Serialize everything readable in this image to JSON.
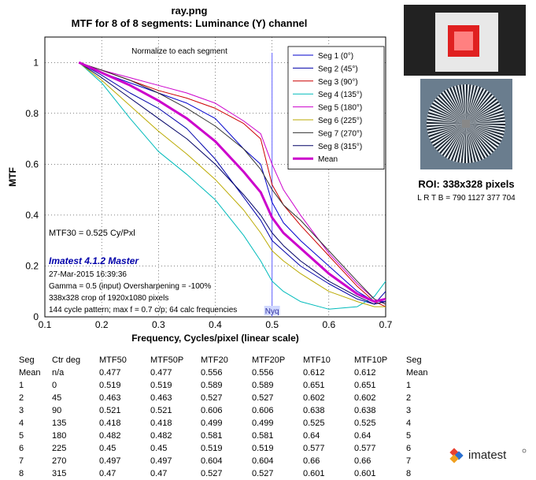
{
  "header": {
    "file": "ray.png",
    "subtitle": "MTF for 8 of 8 segments:  Luminance (Y) channel"
  },
  "chart_data": {
    "type": "line",
    "xlabel": "Frequency, Cycles/pixel (linear scale)",
    "ylabel": "MTF",
    "xlim": [
      0.1,
      0.7
    ],
    "ylim": [
      0,
      1.1
    ],
    "xticks": [
      "0.1",
      "0.2",
      "0.3",
      "0.4",
      "0.5",
      "0.6",
      "0.7"
    ],
    "yticks": [
      "0",
      "0.2",
      "0.4",
      "0.6",
      "0.8",
      "1"
    ],
    "x_tick_values": [
      0.1,
      0.2,
      0.3,
      0.4,
      0.5,
      0.6,
      0.7
    ],
    "y_tick_values": [
      0,
      0.2,
      0.4,
      0.6,
      0.8,
      1.0
    ],
    "grid": true,
    "legend_position": "top-right",
    "normalize_note": "Normalize to each segment",
    "mtf30_text": "MTF30 = 0.525 Cy/Pxl",
    "nyquist": {
      "x": 0.5,
      "label": "Nyq"
    },
    "annotations": {
      "brand": "Imatest 4.1.2 Master",
      "timestamp": "27-Mar-2015 16:39:36",
      "gamma": "Gamma = 0.5 (input)  Oversharpening = -100%",
      "crop": "338x328 crop of 1920x1080 pixels",
      "pattern": "144 cycle pattern;  max f = 0.7 c/p;  64 calc frequencies"
    },
    "series": [
      {
        "name": "Seg 1 (0°)",
        "color": "#0000cc",
        "width": 1,
        "x": [
          0.16,
          0.2,
          0.25,
          0.3,
          0.35,
          0.4,
          0.45,
          0.48,
          0.5,
          0.52,
          0.55,
          0.6,
          0.65,
          0.68,
          0.7
        ],
        "y": [
          1.0,
          0.96,
          0.92,
          0.88,
          0.84,
          0.78,
          0.66,
          0.6,
          0.45,
          0.37,
          0.3,
          0.2,
          0.1,
          0.06,
          0.06
        ]
      },
      {
        "name": "Seg 2 (45°)",
        "color": "#0000aa",
        "width": 1,
        "x": [
          0.16,
          0.2,
          0.25,
          0.3,
          0.35,
          0.4,
          0.45,
          0.48,
          0.5,
          0.52,
          0.55,
          0.6,
          0.65,
          0.68,
          0.7
        ],
        "y": [
          1.0,
          0.95,
          0.88,
          0.82,
          0.74,
          0.62,
          0.47,
          0.38,
          0.3,
          0.26,
          0.2,
          0.13,
          0.07,
          0.05,
          0.1
        ]
      },
      {
        "name": "Seg 3 (90°)",
        "color": "#cc0000",
        "width": 1,
        "x": [
          0.16,
          0.2,
          0.25,
          0.3,
          0.35,
          0.4,
          0.45,
          0.48,
          0.5,
          0.52,
          0.55,
          0.6,
          0.65,
          0.68,
          0.7
        ],
        "y": [
          1.0,
          0.97,
          0.93,
          0.89,
          0.86,
          0.82,
          0.76,
          0.7,
          0.52,
          0.44,
          0.36,
          0.24,
          0.12,
          0.06,
          0.04
        ]
      },
      {
        "name": "Seg 4 (135°)",
        "color": "#00bbbb",
        "width": 1,
        "x": [
          0.16,
          0.2,
          0.25,
          0.3,
          0.35,
          0.4,
          0.45,
          0.48,
          0.5,
          0.52,
          0.55,
          0.6,
          0.65,
          0.68,
          0.7
        ],
        "y": [
          1.0,
          0.92,
          0.78,
          0.65,
          0.56,
          0.46,
          0.32,
          0.22,
          0.14,
          0.1,
          0.06,
          0.03,
          0.04,
          0.08,
          0.14
        ]
      },
      {
        "name": "Seg 5 (180°)",
        "color": "#cc00cc",
        "width": 1,
        "x": [
          0.16,
          0.2,
          0.25,
          0.3,
          0.35,
          0.4,
          0.45,
          0.48,
          0.5,
          0.52,
          0.55,
          0.6,
          0.65,
          0.68,
          0.7
        ],
        "y": [
          1.0,
          0.97,
          0.94,
          0.91,
          0.88,
          0.84,
          0.77,
          0.72,
          0.6,
          0.5,
          0.4,
          0.25,
          0.13,
          0.07,
          0.05
        ]
      },
      {
        "name": "Seg 6 (225°)",
        "color": "#bbaa00",
        "width": 1,
        "x": [
          0.16,
          0.2,
          0.25,
          0.3,
          0.35,
          0.4,
          0.45,
          0.48,
          0.5,
          0.52,
          0.55,
          0.6,
          0.65,
          0.68,
          0.7
        ],
        "y": [
          1.0,
          0.93,
          0.83,
          0.73,
          0.64,
          0.54,
          0.42,
          0.33,
          0.26,
          0.22,
          0.17,
          0.1,
          0.06,
          0.04,
          0.04
        ]
      },
      {
        "name": "Seg 7 (270°)",
        "color": "#333333",
        "width": 1,
        "x": [
          0.16,
          0.2,
          0.25,
          0.3,
          0.35,
          0.4,
          0.45,
          0.48,
          0.5,
          0.52,
          0.55,
          0.6,
          0.65,
          0.68,
          0.7
        ],
        "y": [
          1.0,
          0.97,
          0.93,
          0.88,
          0.82,
          0.75,
          0.66,
          0.58,
          0.5,
          0.44,
          0.38,
          0.26,
          0.14,
          0.07,
          0.05
        ]
      },
      {
        "name": "Seg 8 (315°)",
        "color": "#000066",
        "width": 1,
        "x": [
          0.16,
          0.2,
          0.25,
          0.3,
          0.35,
          0.4,
          0.45,
          0.48,
          0.5,
          0.52,
          0.55,
          0.6,
          0.65,
          0.68,
          0.7
        ],
        "y": [
          1.0,
          0.94,
          0.86,
          0.78,
          0.7,
          0.6,
          0.48,
          0.4,
          0.33,
          0.28,
          0.22,
          0.14,
          0.08,
          0.05,
          0.06
        ]
      },
      {
        "name": "Mean",
        "color": "#cc00cc",
        "width": 3,
        "x": [
          0.16,
          0.2,
          0.25,
          0.3,
          0.35,
          0.4,
          0.45,
          0.48,
          0.5,
          0.52,
          0.55,
          0.6,
          0.65,
          0.68,
          0.7
        ],
        "y": [
          1.0,
          0.96,
          0.91,
          0.85,
          0.78,
          0.69,
          0.57,
          0.49,
          0.39,
          0.33,
          0.27,
          0.17,
          0.09,
          0.06,
          0.07
        ]
      }
    ]
  },
  "roi": {
    "label": "ROI:  338x328 pixels",
    "coords": "L R  T B = 790 1127  377 704"
  },
  "table": {
    "header": [
      "Seg",
      "Ctr deg",
      "MTF50",
      "MTF50P",
      "MTF20",
      "MTF20P",
      "MTF10",
      "MTF10P",
      "Seg"
    ],
    "rows": [
      [
        "Mean",
        "n/a",
        "0.477",
        "0.477",
        "0.556",
        "0.556",
        "0.612",
        "0.612",
        "Mean"
      ],
      [
        "1",
        "0",
        "0.519",
        "0.519",
        "0.589",
        "0.589",
        "0.651",
        "0.651",
        "1"
      ],
      [
        "2",
        "45",
        "0.463",
        "0.463",
        "0.527",
        "0.527",
        "0.602",
        "0.602",
        "2"
      ],
      [
        "3",
        "90",
        "0.521",
        "0.521",
        "0.606",
        "0.606",
        "0.638",
        "0.638",
        "3"
      ],
      [
        "4",
        "135",
        "0.418",
        "0.418",
        "0.499",
        "0.499",
        "0.525",
        "0.525",
        "4"
      ],
      [
        "5",
        "180",
        "0.482",
        "0.482",
        "0.581",
        "0.581",
        "0.64",
        "0.64",
        "5"
      ],
      [
        "6",
        "225",
        "0.45",
        "0.45",
        "0.519",
        "0.519",
        "0.577",
        "0.577",
        "6"
      ],
      [
        "7",
        "270",
        "0.497",
        "0.497",
        "0.604",
        "0.604",
        "0.66",
        "0.66",
        "7"
      ],
      [
        "8",
        "315",
        "0.47",
        "0.47",
        "0.527",
        "0.527",
        "0.601",
        "0.601",
        "8"
      ]
    ]
  },
  "logo": {
    "text": "imatest"
  }
}
